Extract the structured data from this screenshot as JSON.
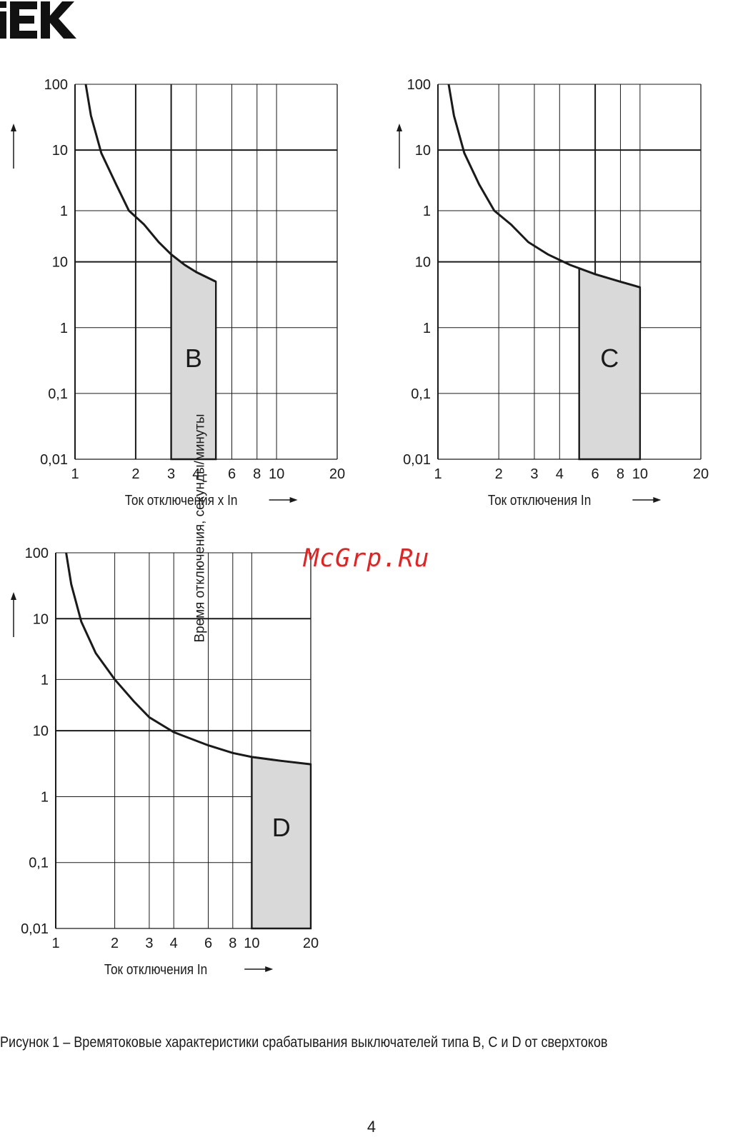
{
  "brand": {
    "logo_text": "IEK"
  },
  "watermark": "McGrp.Ru",
  "caption": "Рисунок 1 – Времятоковые характеристики срабатывания выключателей типа B, C и D от сверхтоков",
  "page_number": "4",
  "colors": {
    "ink": "#1a1a1a",
    "zone_fill": "#d9d9d9",
    "watermark": "#e02424"
  },
  "chart_data": [
    {
      "type": "line",
      "zone_label": "B",
      "xlabel": "Ток отключения x In",
      "ylabel": "Время отключения, секунды/минуты",
      "x_ticks": [
        "1",
        "2",
        "3",
        "4",
        "6",
        "8",
        "10",
        "20"
      ],
      "y_ticks_minutes": [
        "100",
        "10",
        "1"
      ],
      "y_ticks_seconds": [
        "10",
        "1",
        "0,1",
        "0,01"
      ],
      "xlim": [
        1,
        20
      ],
      "curve": [
        {
          "x": 1.13,
          "y": 6000
        },
        {
          "x": 1.2,
          "y": 2000
        },
        {
          "x": 1.35,
          "y": 540
        },
        {
          "x": 1.6,
          "y": 180
        },
        {
          "x": 1.85,
          "y": 72
        },
        {
          "x": 2.2,
          "y": 37
        },
        {
          "x": 2.6,
          "y": 20
        },
        {
          "x": 3.0,
          "y": 13
        },
        {
          "x": 3.5,
          "y": 9
        },
        {
          "x": 4.0,
          "y": 7
        },
        {
          "x": 5.0,
          "y": 5
        }
      ],
      "zone": {
        "x_from": 3,
        "x_to": 5,
        "y_from": 0.01
      }
    },
    {
      "type": "line",
      "zone_label": "C",
      "xlabel": "Ток отключения In",
      "ylabel": "Время отключения, секунды/минуты",
      "x_ticks": [
        "1",
        "2",
        "3",
        "4",
        "6",
        "8",
        "10",
        "20"
      ],
      "y_ticks_minutes": [
        "100",
        "10",
        "1"
      ],
      "y_ticks_seconds": [
        "10",
        "1",
        "0,1",
        "0,01"
      ],
      "xlim": [
        1,
        20
      ],
      "curve": [
        {
          "x": 1.13,
          "y": 6000
        },
        {
          "x": 1.2,
          "y": 2000
        },
        {
          "x": 1.35,
          "y": 540
        },
        {
          "x": 1.6,
          "y": 180
        },
        {
          "x": 1.9,
          "y": 72
        },
        {
          "x": 2.3,
          "y": 37
        },
        {
          "x": 2.8,
          "y": 20
        },
        {
          "x": 3.5,
          "y": 13
        },
        {
          "x": 4.5,
          "y": 9
        },
        {
          "x": 6.0,
          "y": 6.5
        },
        {
          "x": 8.0,
          "y": 5
        },
        {
          "x": 10.0,
          "y": 4.1
        }
      ],
      "zone": {
        "x_from": 5,
        "x_to": 10,
        "y_from": 0.01
      }
    },
    {
      "type": "line",
      "zone_label": "D",
      "xlabel": "Ток отключения In",
      "ylabel": "Время отключения, секунды/минуты",
      "x_ticks": [
        "1",
        "2",
        "3",
        "4",
        "6",
        "8",
        "10",
        "20"
      ],
      "y_ticks_minutes": [
        "100",
        "10",
        "1"
      ],
      "y_ticks_seconds": [
        "10",
        "1",
        "0,1",
        "0,01"
      ],
      "xlim": [
        1,
        20
      ],
      "curve": [
        {
          "x": 1.13,
          "y": 6000
        },
        {
          "x": 1.2,
          "y": 2000
        },
        {
          "x": 1.35,
          "y": 540
        },
        {
          "x": 1.6,
          "y": 180
        },
        {
          "x": 2.0,
          "y": 60
        },
        {
          "x": 2.5,
          "y": 28
        },
        {
          "x": 3.0,
          "y": 16
        },
        {
          "x": 4.0,
          "y": 9.5
        },
        {
          "x": 6.0,
          "y": 6
        },
        {
          "x": 8.0,
          "y": 4.6
        },
        {
          "x": 10.0,
          "y": 4
        },
        {
          "x": 14.0,
          "y": 3.5
        },
        {
          "x": 20.0,
          "y": 3.1
        }
      ],
      "zone": {
        "x_from": 10,
        "x_to": 20,
        "y_from": 0.01
      }
    }
  ]
}
